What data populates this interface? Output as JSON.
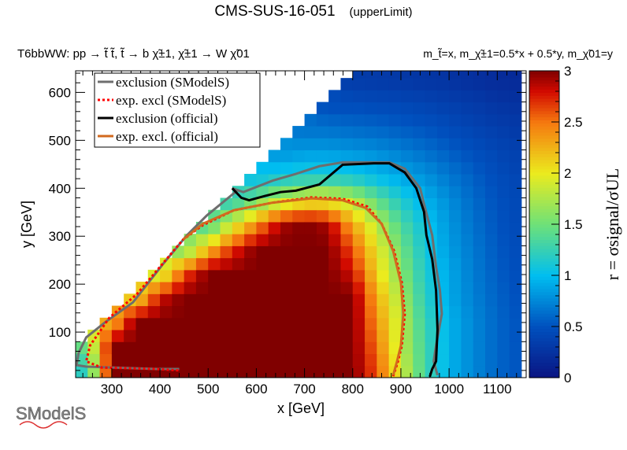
{
  "chart_data": {
    "type": "heatmap",
    "title": "CMS-SUS-16-051",
    "title_suffix": "(upperLimit)",
    "subtitle_left": "T6bbWW: pp → t̃ t̃, t̃ → b χ̃±1, χ̃±1 → W χ̃01",
    "subtitle_right": "m_t̃=x, m_χ̃±1=0.5*x + 0.5*y, m_χ̃01=y",
    "xlabel": "x [GeV]",
    "ylabel": "y [GeV]",
    "zlabel": "r = σsignal/σUL",
    "xlim": [
      225,
      1160
    ],
    "ylim": [
      5,
      645
    ],
    "zlim": [
      0,
      3
    ],
    "xticks": [
      300,
      400,
      500,
      600,
      700,
      800,
      900,
      1000,
      1100
    ],
    "yticks": [
      100,
      200,
      300,
      400,
      500,
      600
    ],
    "zticks": [
      "0",
      "0.5",
      "1",
      "1.5",
      "2",
      "2.5",
      "3"
    ],
    "grid_x": [
      250,
      300,
      350,
      400,
      450,
      500,
      550,
      600,
      650,
      700,
      750,
      800,
      850,
      900,
      950,
      1000,
      1050,
      1100,
      1150
    ],
    "grid_y": [
      25,
      75,
      125,
      175,
      225,
      275,
      325,
      375,
      425,
      475,
      525,
      575,
      625
    ],
    "r_values": [
      [
        1.2,
        3,
        3,
        3,
        3,
        3,
        3,
        3,
        3,
        3,
        3,
        3,
        2.6,
        1.9,
        1.3,
        0.95,
        0.75,
        0.6,
        0.5
      ],
      [
        1.5,
        3,
        3,
        3,
        3,
        3,
        3,
        3,
        3,
        3,
        3,
        3,
        2.5,
        1.8,
        1.3,
        0.95,
        0.75,
        0.6,
        0.5
      ],
      [
        null,
        2.2,
        3,
        3,
        3,
        3,
        3,
        3,
        3,
        3,
        3,
        3,
        2.4,
        1.8,
        1.25,
        0.95,
        0.75,
        0.6,
        0.5
      ],
      [
        null,
        null,
        2.0,
        2.8,
        3,
        3,
        3,
        3,
        3,
        3,
        3,
        3,
        2.3,
        1.7,
        1.2,
        0.9,
        0.72,
        0.58,
        0.48
      ],
      [
        null,
        null,
        null,
        1.8,
        2.6,
        3,
        3,
        3,
        3,
        3,
        3,
        2.8,
        2.1,
        1.6,
        1.15,
        0.9,
        0.7,
        0.56,
        0.46
      ],
      [
        null,
        null,
        null,
        null,
        1.5,
        2.2,
        2.7,
        3,
        3,
        3,
        3,
        2.6,
        2.0,
        1.5,
        1.1,
        0.85,
        0.68,
        0.54,
        0.45
      ],
      [
        null,
        null,
        null,
        null,
        null,
        1.3,
        1.9,
        2.4,
        2.9,
        3,
        2.9,
        2.3,
        1.8,
        1.35,
        1.05,
        0.82,
        0.65,
        0.52,
        0.43
      ],
      [
        null,
        null,
        null,
        null,
        null,
        null,
        1.2,
        1.5,
        1.8,
        2.0,
        2.0,
        1.8,
        1.45,
        1.15,
        0.95,
        0.78,
        0.62,
        0.5,
        0.42
      ],
      [
        null,
        null,
        null,
        null,
        null,
        null,
        null,
        1.0,
        1.1,
        1.15,
        1.15,
        1.1,
        1.0,
        0.9,
        0.8,
        0.68,
        0.57,
        0.47,
        0.4
      ],
      [
        null,
        null,
        null,
        null,
        null,
        null,
        null,
        null,
        0.8,
        0.85,
        0.85,
        0.82,
        0.78,
        0.72,
        0.65,
        0.57,
        0.49,
        0.42,
        0.36
      ],
      [
        null,
        null,
        null,
        null,
        null,
        null,
        null,
        null,
        null,
        0.65,
        0.65,
        0.62,
        0.6,
        0.56,
        0.52,
        0.46,
        0.4,
        0.35,
        0.31
      ],
      [
        null,
        null,
        null,
        null,
        null,
        null,
        null,
        null,
        null,
        null,
        0.48,
        0.47,
        0.45,
        0.43,
        0.4,
        0.36,
        0.32,
        0.28,
        0.25
      ],
      [
        null,
        null,
        null,
        null,
        null,
        null,
        null,
        null,
        null,
        null,
        null,
        0.33,
        0.32,
        0.3,
        0.28,
        0.26,
        0.23,
        0.2,
        0.18
      ]
    ],
    "legend_position": "top-left",
    "series": [
      {
        "name": "exclusion (SModelS)",
        "color": "#6e6e6e",
        "style": "solid",
        "points": [
          [
            976,
            10
          ],
          [
            968,
            39
          ],
          [
            973,
            72
          ],
          [
            985,
            138
          ],
          [
            981,
            187
          ],
          [
            973,
            236
          ],
          [
            965,
            302
          ],
          [
            948,
            367
          ],
          [
            940,
            400
          ],
          [
            908,
            441
          ],
          [
            876,
            454
          ],
          [
            779,
            454
          ],
          [
            731,
            446
          ],
          [
            682,
            430
          ],
          [
            634,
            416
          ],
          [
            573,
            392
          ],
          [
            550,
            400
          ],
          [
            560,
            395
          ],
          [
            497,
            343
          ],
          [
            456,
            302
          ],
          [
            408,
            244
          ],
          [
            344,
            162
          ],
          [
            287,
            121
          ],
          [
            247,
            89
          ],
          [
            231,
            56
          ],
          [
            227,
            31
          ],
          [
            247,
            28
          ],
          [
            392,
            23
          ],
          [
            440,
            23
          ]
        ]
      },
      {
        "name": "exp. excl (SModelS)",
        "color": "#ff0000",
        "style": "dotted",
        "points": [
          [
            884,
            8
          ],
          [
            894,
            39
          ],
          [
            902,
            72
          ],
          [
            908,
            138
          ],
          [
            902,
            203
          ],
          [
            886,
            269
          ],
          [
            860,
            326
          ],
          [
            830,
            362
          ],
          [
            779,
            378
          ],
          [
            715,
            381
          ],
          [
            634,
            370
          ],
          [
            553,
            354
          ],
          [
            489,
            323
          ],
          [
            448,
            293
          ],
          [
            400,
            236
          ],
          [
            352,
            179
          ],
          [
            295,
            130
          ],
          [
            255,
            72
          ],
          [
            247,
            39
          ],
          [
            279,
            26
          ],
          [
            392,
            23
          ],
          [
            440,
            20
          ]
        ]
      },
      {
        "name": "exclusion (official)",
        "color": "#000000",
        "style": "solid",
        "points": [
          [
            550,
            400
          ],
          [
            569,
            380
          ],
          [
            585,
            375
          ],
          [
            618,
            384
          ],
          [
            650,
            392
          ],
          [
            682,
            395
          ],
          [
            731,
            408
          ],
          [
            779,
            449
          ],
          [
            844,
            452
          ],
          [
            876,
            452
          ],
          [
            908,
            433
          ],
          [
            932,
            400
          ],
          [
            948,
            351
          ],
          [
            953,
            302
          ],
          [
            965,
            252
          ],
          [
            973,
            187
          ],
          [
            976,
            105
          ],
          [
            973,
            39
          ],
          [
            965,
            23
          ],
          [
            960,
            7
          ]
        ]
      },
      {
        "name": "exp. excl. (official)",
        "color": "#d2691e",
        "style": "solid",
        "points": [
          [
            448,
            293
          ],
          [
            489,
            326
          ],
          [
            553,
            354
          ],
          [
            634,
            370
          ],
          [
            715,
            379
          ],
          [
            779,
            375
          ],
          [
            827,
            359
          ],
          [
            860,
            326
          ],
          [
            884,
            269
          ],
          [
            900,
            203
          ],
          [
            905,
            138
          ],
          [
            900,
            72
          ],
          [
            892,
            39
          ],
          [
            884,
            10
          ]
        ]
      }
    ]
  },
  "logo": {
    "text": "SModelS"
  }
}
